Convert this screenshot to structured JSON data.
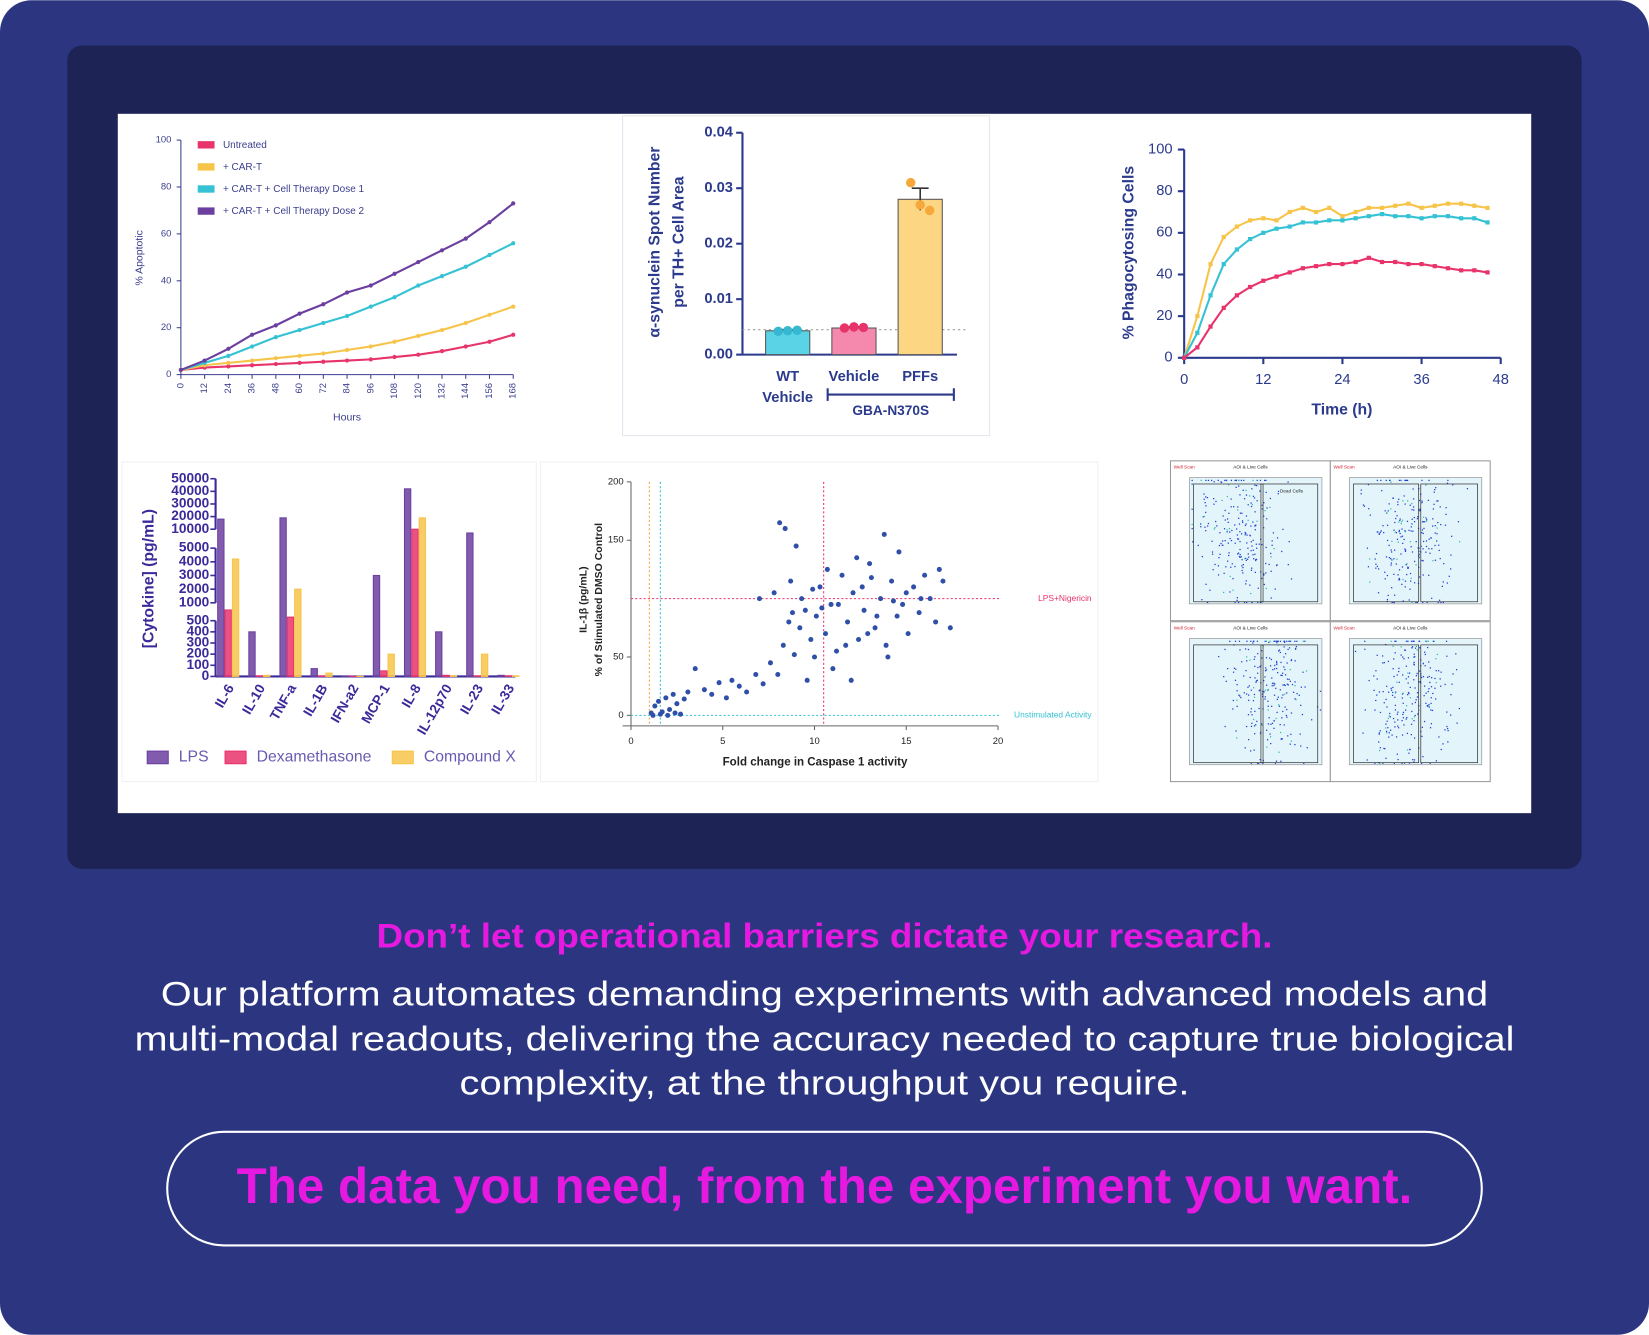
{
  "chart_data": [
    {
      "type": "line",
      "xlabel": "Hours",
      "ylabel": "% Apoptotic",
      "x": [
        0,
        12,
        24,
        36,
        48,
        60,
        72,
        84,
        96,
        108,
        120,
        132,
        144,
        156,
        168
      ],
      "series": [
        {
          "name": "Untreated",
          "color": "#e8336b",
          "values": [
            2,
            3,
            3.5,
            4,
            4.5,
            5,
            5.5,
            6,
            6.5,
            7.5,
            8.5,
            10,
            12,
            14,
            17
          ]
        },
        {
          "name": "+ CAR-T",
          "color": "#f7c44a",
          "values": [
            2,
            4,
            5,
            6,
            7,
            8,
            9,
            10.5,
            12,
            14,
            16.5,
            19,
            22,
            25.5,
            29
          ]
        },
        {
          "name": "+ CAR-T + Cell Therapy Dose 1",
          "color": "#35c2d4",
          "values": [
            2,
            5,
            8,
            12,
            16,
            19,
            22,
            25,
            29,
            33,
            38,
            42,
            46,
            51,
            56
          ]
        },
        {
          "name": "+ CAR-T + Cell Therapy Dose 2",
          "color": "#6b3fa0",
          "values": [
            2,
            6,
            11,
            17,
            21,
            26,
            30,
            35,
            38,
            43,
            48,
            53,
            58,
            65,
            73
          ]
        }
      ],
      "xlim": [
        0,
        168
      ],
      "xticks": [
        0,
        12,
        24,
        36,
        48,
        60,
        72,
        84,
        96,
        108,
        120,
        132,
        144,
        156,
        168
      ],
      "ylim": [
        0,
        100
      ],
      "yticks": [
        0,
        20,
        40,
        60,
        80,
        100
      ]
    },
    {
      "type": "bar",
      "ylabel": [
        "α-synuclein Spot Number",
        "per TH+ Cell Area"
      ],
      "categories": [
        "WT Vehicle",
        "Vehicle",
        "PFFs"
      ],
      "group_label": "GBA-N370S",
      "values": [
        0.0043,
        0.0048,
        0.028
      ],
      "errors": [
        0.0002,
        0.0002,
        0.002
      ],
      "points": [
        [
          0.0042,
          0.0043,
          0.0044
        ],
        [
          0.0048,
          0.005,
          0.0049
        ],
        [
          0.031,
          0.027,
          0.026
        ]
      ],
      "colors": [
        "#5bd3e6",
        "#f589ad",
        "#fcd682"
      ],
      "reference_line": 0.0045,
      "ylim": [
        0,
        0.04
      ],
      "yticks": [
        {
          "value": 0,
          "label": "0.00"
        },
        0.01,
        0.02,
        0.03,
        0.04
      ]
    },
    {
      "type": "line",
      "xlabel": "Time (h)",
      "ylabel": "% Phagocytosing Cells",
      "x": [
        0,
        2,
        4,
        6,
        8,
        10,
        12,
        14,
        16,
        18,
        20,
        22,
        24,
        26,
        28,
        30,
        32,
        34,
        36,
        38,
        40,
        42,
        44,
        46
      ],
      "series": [
        {
          "color": "#f7c44a",
          "values": [
            0,
            20,
            45,
            58,
            63,
            66,
            67,
            66,
            70,
            72,
            70,
            72,
            68,
            70,
            72,
            72,
            73,
            74,
            72,
            73,
            74,
            74,
            73,
            72
          ]
        },
        {
          "color": "#35c2d4",
          "values": [
            0,
            12,
            30,
            45,
            52,
            57,
            60,
            62,
            63,
            65,
            65,
            66,
            66,
            67,
            68,
            69,
            68,
            68,
            67,
            68,
            68,
            67,
            67,
            65
          ]
        },
        {
          "color": "#e8336b",
          "values": [
            0,
            5,
            15,
            24,
            30,
            34,
            37,
            39,
            41,
            43,
            44,
            45,
            45,
            46,
            48,
            46,
            46,
            45,
            45,
            44,
            43,
            42,
            42,
            41
          ]
        }
      ],
      "xlim": [
        0,
        48
      ],
      "xticks": [
        0,
        12,
        24,
        36,
        48
      ],
      "ylim": [
        0,
        100
      ],
      "yticks": [
        0,
        20,
        40,
        60,
        80,
        100
      ]
    },
    {
      "type": "broken_bar",
      "ylabel": "[Cytokine] (pg/mL)",
      "categories": [
        "IL-6",
        "IL-10",
        "TNF-a",
        "IL-1B",
        "IFN-a2",
        "MCP-1",
        "IL-8",
        "IL-12p70",
        "IL-23",
        "IL-33"
      ],
      "series": [
        {
          "name": "LPS",
          "color": "#6b3fa0",
          "values": [
            18000,
            400,
            19000,
            70,
            2,
            3000,
            42000,
            400,
            9000,
            10
          ]
        },
        {
          "name": "Dexamethasone",
          "color": "#e8336b",
          "values": [
            800,
            5,
            600,
            5,
            2,
            50,
            10000,
            10,
            5,
            5
          ]
        },
        {
          "name": "Compound X",
          "color": "#f7c44a",
          "values": [
            4200,
            10,
            2000,
            30,
            2,
            200,
            19000,
            5,
            200,
            5
          ]
        }
      ],
      "y_segments": [
        {
          "ylim": [
            0,
            500
          ],
          "yticks": [
            0,
            100,
            200,
            300,
            400,
            500
          ]
        },
        {
          "ylim": [
            1000,
            5000
          ],
          "yticks": [
            1000,
            2000,
            3000,
            4000,
            5000
          ]
        },
        {
          "ylim": [
            10000,
            50000
          ],
          "yticks": [
            10000,
            20000,
            30000,
            40000,
            50000
          ]
        }
      ]
    },
    {
      "type": "scatter",
      "xlabel": "Fold change in Caspase 1 activity",
      "ylabel": [
        "IL-1β (pg/mL)",
        "% of Stimulated DMSO Control"
      ],
      "color": "#2f4fa8",
      "x": [
        1.1,
        1.3,
        1.5,
        1.7,
        1.9,
        2.1,
        2.3,
        2.5,
        2.7,
        2.9,
        3.1,
        1.2,
        1.6,
        2.0,
        2.4,
        3.5,
        4.0,
        4.4,
        4.8,
        5.2,
        5.5,
        5.9,
        6.3,
        6.8,
        7.2,
        7.6,
        8.0,
        8.3,
        8.6,
        8.9,
        9.2,
        9.5,
        9.8,
        10.1,
        10.3,
        10.6,
        10.9,
        11.2,
        11.5,
        11.8,
        12.1,
        12.4,
        12.7,
        13.0,
        13.3,
        13.6,
        13.9,
        14.2,
        14.5,
        14.8,
        15.1,
        15.4,
        15.7,
        16.0,
        16.3,
        16.6,
        17.0,
        17.4,
        8.1,
        8.4,
        9.0,
        13.8,
        14.6,
        12.3,
        10.0,
        11.0,
        12.0,
        9.6,
        7.0,
        7.8,
        8.7,
        9.3,
        10.7,
        11.3,
        12.6,
        13.4,
        14.0,
        15.0,
        15.8,
        16.8,
        11.7,
        12.9,
        10.4,
        9.9,
        8.8,
        13.1,
        14.3
      ],
      "y": [
        2,
        8,
        12,
        3,
        15,
        5,
        18,
        10,
        1,
        14,
        20,
        0,
        1,
        0,
        2,
        40,
        22,
        18,
        28,
        15,
        30,
        25,
        20,
        35,
        27,
        45,
        35,
        60,
        80,
        52,
        75,
        90,
        65,
        85,
        110,
        70,
        95,
        55,
        120,
        80,
        105,
        65,
        90,
        130,
        75,
        100,
        60,
        115,
        85,
        95,
        70,
        110,
        88,
        120,
        100,
        80,
        115,
        75,
        165,
        160,
        145,
        155,
        140,
        135,
        50,
        40,
        30,
        30,
        100,
        105,
        115,
        100,
        125,
        95,
        110,
        85,
        50,
        105,
        100,
        125,
        60,
        70,
        92,
        108,
        88,
        118,
        98
      ],
      "hlines": [
        {
          "value": 100,
          "label": "LPS+Nigericin",
          "color": "#e8336b"
        },
        {
          "value": 0,
          "label": "Unstimulated Activity",
          "color": "#35c2d4"
        }
      ],
      "vlines": [
        {
          "value": 10.5,
          "color": "#e8336b"
        },
        {
          "value": 1.0,
          "color": "#f7a24a"
        },
        {
          "value": 1.6,
          "color": "#35c2d4"
        }
      ],
      "xlim": [
        0,
        20
      ],
      "xticks": [
        0,
        5,
        10,
        15,
        20
      ],
      "ylim": [
        0,
        200
      ],
      "yticks": [
        0,
        50,
        150,
        200
      ]
    }
  ],
  "flow_panels": [
    {
      "tag": "Well Scan",
      "header": "AOI & Live Cells",
      "gate": "Dead Cells"
    },
    {
      "tag": "Well Scan",
      "header": "AOI & Live Cells"
    },
    {
      "tag": "Well Scan",
      "header": "AOI & Live Cells"
    },
    {
      "tag": "Well Scan",
      "header": "AOI & Live Cells"
    }
  ],
  "text": {
    "headline": "Don’t let operational barriers dictate your research.",
    "paragraph_lines": [
      "Our platform automates demanding experiments with advanced models and",
      "multi-modal readouts, delivering the accuracy needed to capture true biological",
      "complexity, at the throughput you require."
    ],
    "tagline": "The data you need, from the experiment you want."
  }
}
